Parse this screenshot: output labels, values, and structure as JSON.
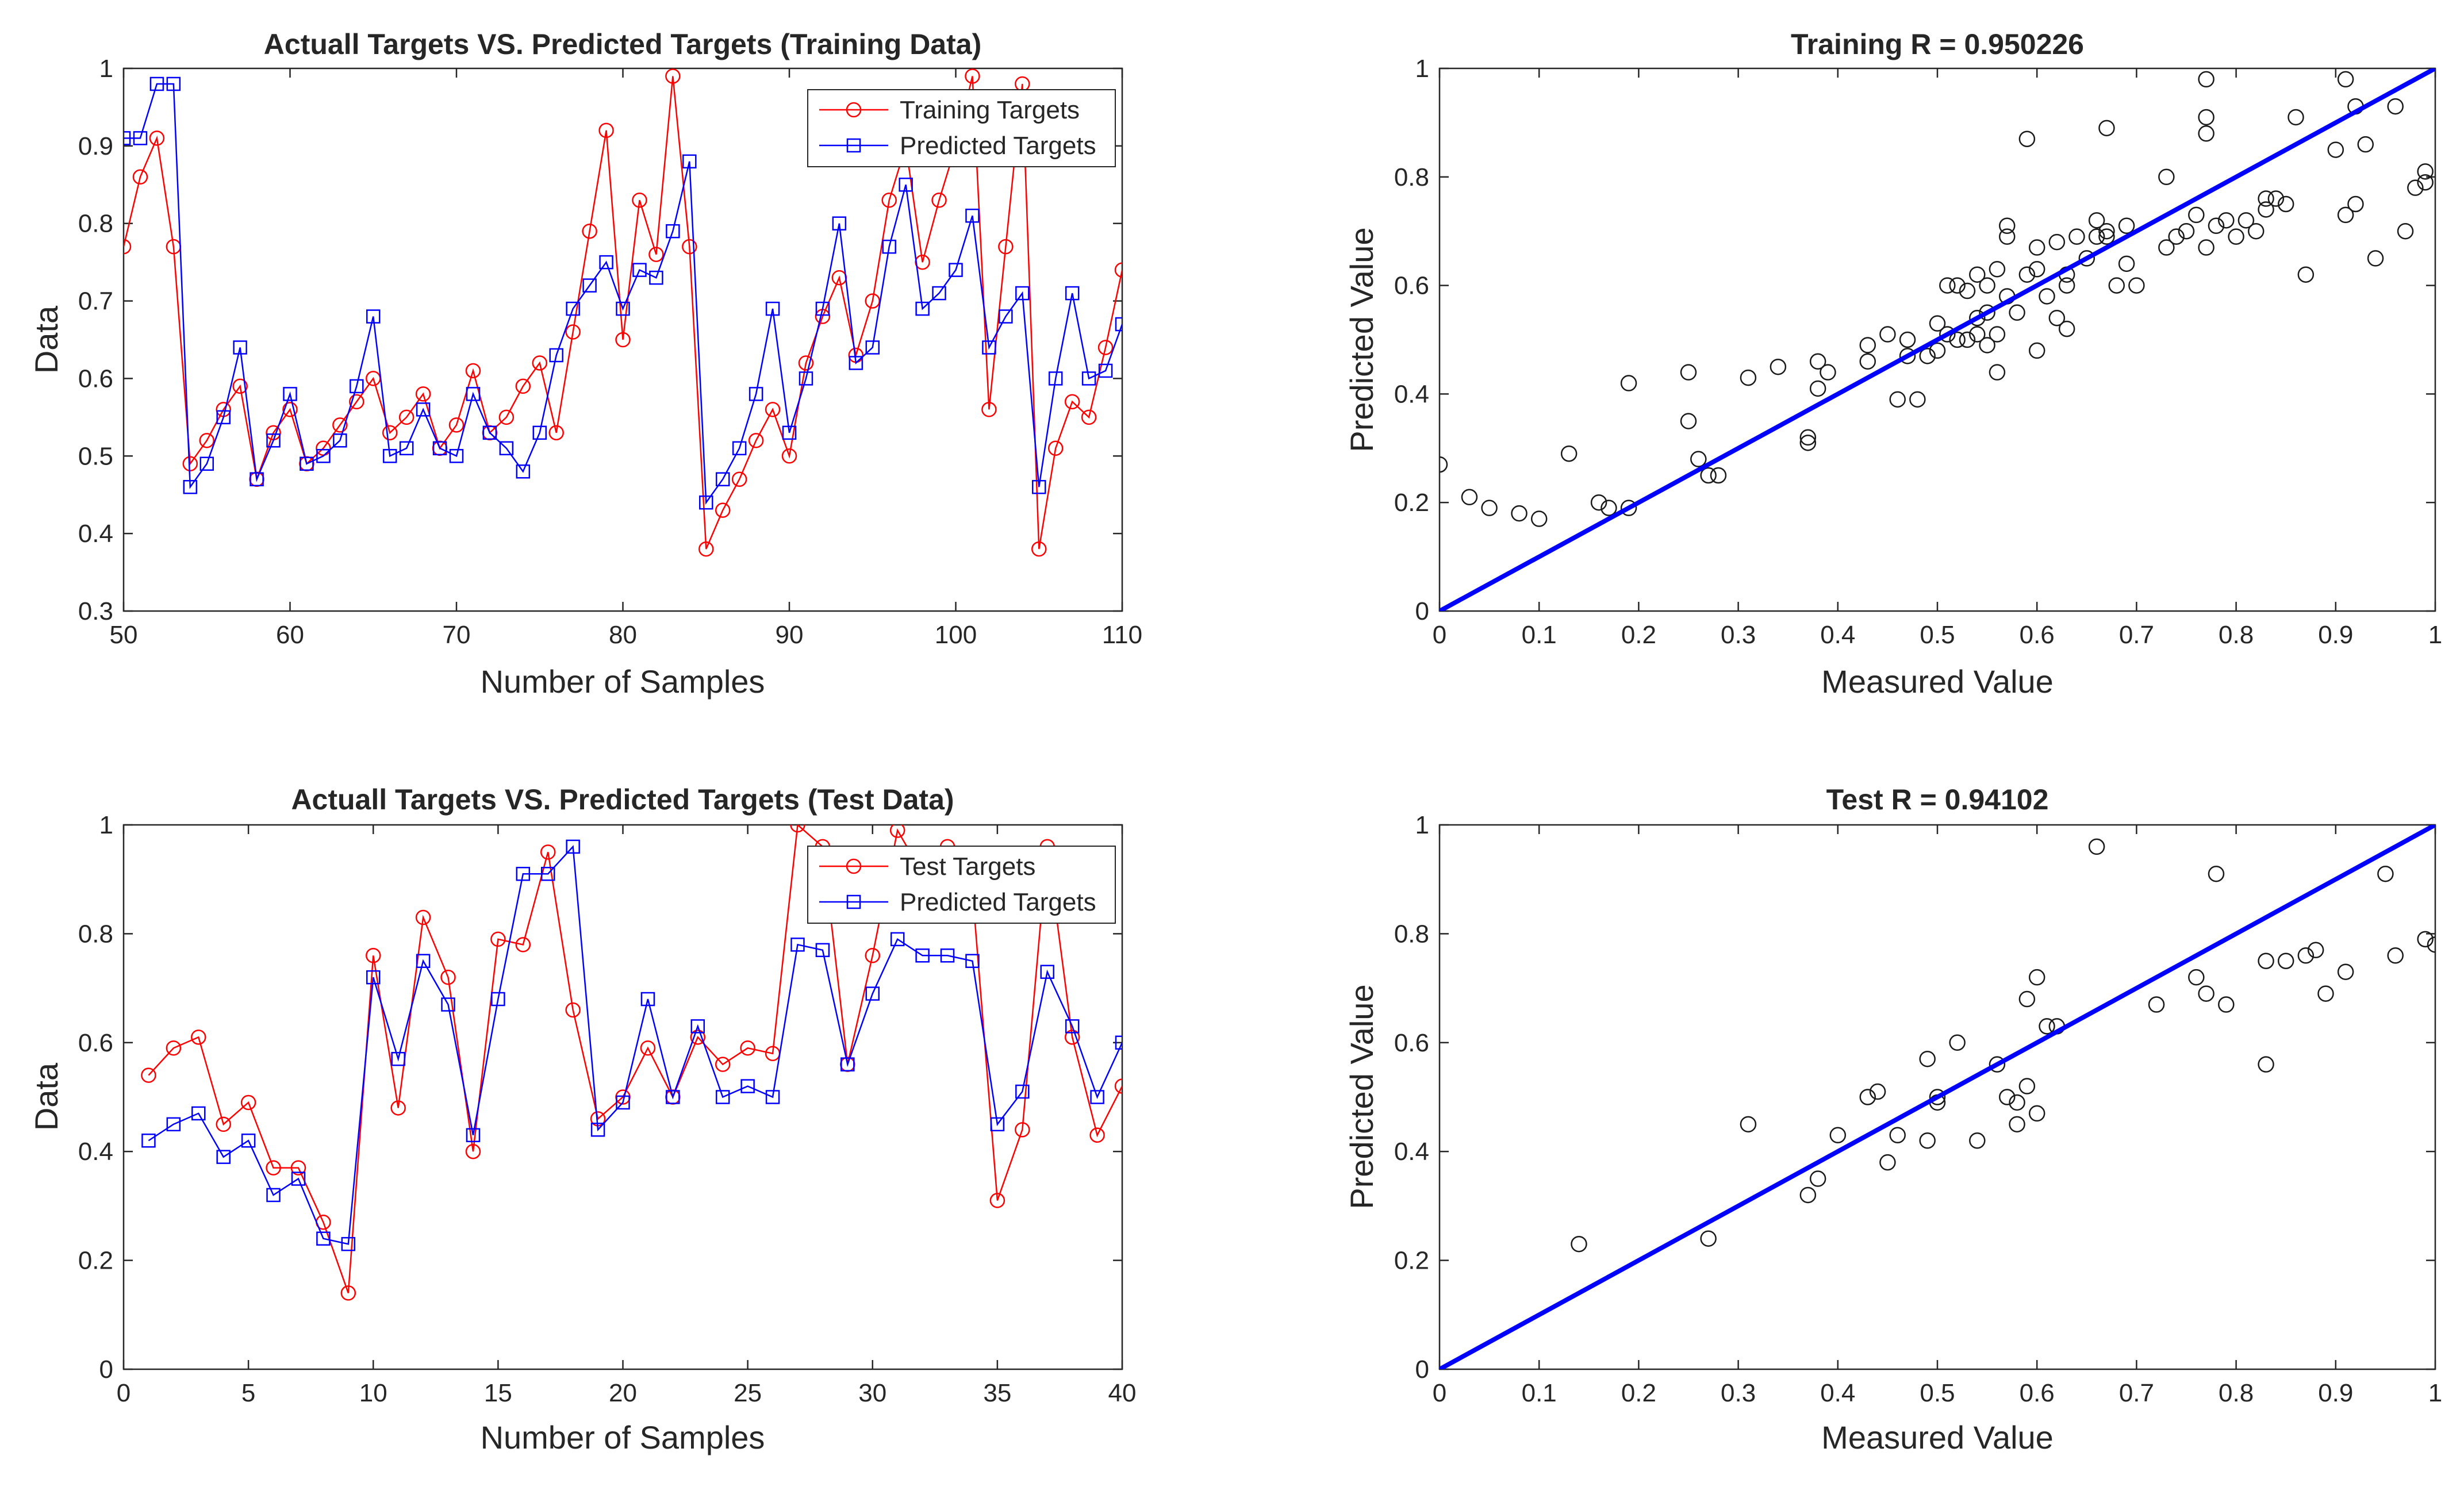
{
  "figure": {
    "background": "#ffffff"
  },
  "chart_data": [
    {
      "id": "train-ts",
      "type": "line",
      "title": "Actuall Targets VS. Predicted Targets (Training Data)",
      "xlabel": "Number of Samples",
      "ylabel": "Data",
      "xlim": [
        50,
        110
      ],
      "ylim": [
        0.3,
        1
      ],
      "xticks": [
        50,
        60,
        70,
        80,
        90,
        100,
        110
      ],
      "yticks": [
        0.3,
        0.4,
        0.5,
        0.6,
        0.7,
        0.8,
        0.9,
        1
      ],
      "ytick_labels": [
        "0.3",
        "0.4",
        "0.5",
        "0.6",
        "0.7",
        "0.8",
        "0.9",
        "1"
      ],
      "legend_position": "top-right",
      "x": [
        50,
        51,
        52,
        53,
        54,
        55,
        56,
        57,
        58,
        59,
        60,
        61,
        62,
        63,
        64,
        65,
        66,
        67,
        68,
        69,
        70,
        71,
        72,
        73,
        74,
        75,
        76,
        77,
        78,
        79,
        80,
        81,
        82,
        83,
        84,
        85,
        86,
        87,
        88,
        89,
        90,
        91,
        92,
        93,
        94,
        95,
        96,
        97,
        98,
        99,
        100,
        101,
        102,
        103,
        104,
        105,
        106,
        107,
        108,
        109,
        110
      ],
      "series": [
        {
          "name": "Training Targets",
          "color": "#ff0000",
          "marker": "circle",
          "values": [
            0.77,
            0.86,
            0.91,
            0.77,
            0.49,
            0.52,
            0.56,
            0.59,
            0.47,
            0.53,
            0.56,
            0.49,
            0.51,
            0.54,
            0.57,
            0.6,
            0.53,
            0.55,
            0.58,
            0.51,
            0.54,
            0.61,
            0.53,
            0.55,
            0.59,
            0.62,
            0.53,
            0.66,
            0.79,
            0.92,
            0.65,
            0.83,
            0.76,
            0.99,
            0.77,
            0.38,
            0.43,
            0.47,
            0.52,
            0.56,
            0.5,
            0.62,
            0.68,
            0.73,
            0.63,
            0.7,
            0.83,
            0.9,
            0.75,
            0.83,
            0.9,
            0.99,
            0.56,
            0.77,
            0.98,
            0.38,
            0.51,
            0.57,
            0.55,
            0.64,
            0.74
          ]
        },
        {
          "name": "Predicted Targets",
          "color": "#0000ff",
          "marker": "square",
          "values": [
            0.91,
            0.91,
            0.98,
            0.98,
            0.46,
            0.49,
            0.55,
            0.64,
            0.47,
            0.52,
            0.58,
            0.49,
            0.5,
            0.52,
            0.59,
            0.68,
            0.5,
            0.51,
            0.56,
            0.51,
            0.5,
            0.58,
            0.53,
            0.51,
            0.48,
            0.53,
            0.63,
            0.69,
            0.72,
            0.75,
            0.69,
            0.74,
            0.73,
            0.79,
            0.88,
            0.44,
            0.47,
            0.51,
            0.58,
            0.69,
            0.53,
            0.6,
            0.69,
            0.8,
            0.62,
            0.64,
            0.77,
            0.85,
            0.69,
            0.71,
            0.74,
            0.81,
            0.64,
            0.68,
            0.71,
            0.46,
            0.6,
            0.71,
            0.6,
            0.61,
            0.67
          ]
        }
      ]
    },
    {
      "id": "train-reg",
      "type": "scatter",
      "title": "Training R = 0.950226",
      "xlabel": "Measured Value",
      "ylabel": "Predicted Value",
      "xlim": [
        0,
        1
      ],
      "ylim": [
        0,
        1
      ],
      "xticks": [
        0,
        0.1,
        0.2,
        0.3,
        0.4,
        0.5,
        0.6,
        0.7,
        0.8,
        0.9,
        1
      ],
      "xtick_labels": [
        "0",
        "0.1",
        "0.2",
        "0.3",
        "0.4",
        "0.5",
        "0.6",
        "0.7",
        "0.8",
        "0.9",
        "1"
      ],
      "yticks": [
        0,
        0.2,
        0.4,
        0.6,
        0.8,
        1
      ],
      "ytick_labels": [
        "0",
        "0.2",
        "0.4",
        "0.6",
        "0.8",
        "1"
      ],
      "fit_line": {
        "from": [
          0,
          0
        ],
        "to": [
          1,
          1
        ],
        "color": "#0000ff"
      },
      "points": [
        [
          0,
          0.27
        ],
        [
          0.03,
          0.21
        ],
        [
          0.05,
          0.19
        ],
        [
          0.08,
          0.18
        ],
        [
          0.1,
          0.17
        ],
        [
          0.13,
          0.29
        ],
        [
          0.16,
          0.2
        ],
        [
          0.17,
          0.19
        ],
        [
          0.19,
          0.19
        ],
        [
          0.19,
          0.42
        ],
        [
          0.25,
          0.44
        ],
        [
          0.25,
          0.35
        ],
        [
          0.26,
          0.28
        ],
        [
          0.27,
          0.25
        ],
        [
          0.28,
          0.25
        ],
        [
          0.31,
          0.43
        ],
        [
          0.34,
          0.45
        ],
        [
          0.37,
          0.32
        ],
        [
          0.37,
          0.31
        ],
        [
          0.38,
          0.46
        ],
        [
          0.38,
          0.41
        ],
        [
          0.39,
          0.44
        ],
        [
          0.43,
          0.46
        ],
        [
          0.43,
          0.49
        ],
        [
          0.45,
          0.51
        ],
        [
          0.46,
          0.39
        ],
        [
          0.47,
          0.47
        ],
        [
          0.47,
          0.5
        ],
        [
          0.48,
          0.39
        ],
        [
          0.49,
          0.47
        ],
        [
          0.5,
          0.48
        ],
        [
          0.5,
          0.53
        ],
        [
          0.51,
          0.6
        ],
        [
          0.51,
          0.51
        ],
        [
          0.52,
          0.5
        ],
        [
          0.52,
          0.6
        ],
        [
          0.53,
          0.5
        ],
        [
          0.53,
          0.59
        ],
        [
          0.54,
          0.51
        ],
        [
          0.54,
          0.54
        ],
        [
          0.54,
          0.62
        ],
        [
          0.55,
          0.6
        ],
        [
          0.55,
          0.55
        ],
        [
          0.55,
          0.49
        ],
        [
          0.56,
          0.51
        ],
        [
          0.56,
          0.63
        ],
        [
          0.56,
          0.44
        ],
        [
          0.57,
          0.58
        ],
        [
          0.57,
          0.69
        ],
        [
          0.57,
          0.71
        ],
        [
          0.58,
          0.55
        ],
        [
          0.59,
          0.87
        ],
        [
          0.59,
          0.62
        ],
        [
          0.6,
          0.63
        ],
        [
          0.6,
          0.48
        ],
        [
          0.6,
          0.67
        ],
        [
          0.61,
          0.58
        ],
        [
          0.62,
          0.68
        ],
        [
          0.62,
          0.54
        ],
        [
          0.63,
          0.62
        ],
        [
          0.63,
          0.6
        ],
        [
          0.63,
          0.52
        ],
        [
          0.64,
          0.69
        ],
        [
          0.65,
          0.65
        ],
        [
          0.66,
          0.69
        ],
        [
          0.66,
          0.72
        ],
        [
          0.67,
          0.69
        ],
        [
          0.67,
          0.7
        ],
        [
          0.67,
          0.89
        ],
        [
          0.68,
          0.6
        ],
        [
          0.69,
          0.71
        ],
        [
          0.69,
          0.64
        ],
        [
          0.7,
          0.6
        ],
        [
          0.73,
          0.8
        ],
        [
          0.73,
          0.67
        ],
        [
          0.74,
          0.69
        ],
        [
          0.75,
          0.7
        ],
        [
          0.76,
          0.73
        ],
        [
          0.77,
          0.67
        ],
        [
          0.77,
          0.91
        ],
        [
          0.77,
          0.98
        ],
        [
          0.77,
          0.88
        ],
        [
          0.78,
          0.71
        ],
        [
          0.79,
          0.72
        ],
        [
          0.8,
          0.69
        ],
        [
          0.81,
          0.72
        ],
        [
          0.82,
          0.7
        ],
        [
          0.83,
          0.74
        ],
        [
          0.83,
          0.76
        ],
        [
          0.84,
          0.76
        ],
        [
          0.85,
          0.75
        ],
        [
          0.86,
          0.91
        ],
        [
          0.87,
          0.62
        ],
        [
          0.9,
          0.85
        ],
        [
          0.91,
          0.98
        ],
        [
          0.91,
          0.73
        ],
        [
          0.92,
          0.75
        ],
        [
          0.92,
          0.93
        ],
        [
          0.93,
          0.86
        ],
        [
          0.94,
          0.65
        ],
        [
          0.96,
          0.93
        ],
        [
          0.97,
          0.7
        ],
        [
          0.98,
          0.78
        ],
        [
          0.99,
          0.79
        ],
        [
          0.99,
          0.81
        ]
      ]
    },
    {
      "id": "test-ts",
      "type": "line",
      "title": "Actuall Targets VS. Predicted Targets (Test Data)",
      "xlabel": "Number of Samples",
      "ylabel": "Data",
      "xlim": [
        0,
        40
      ],
      "ylim": [
        0,
        1
      ],
      "xticks": [
        0,
        5,
        10,
        15,
        20,
        25,
        30,
        35,
        40
      ],
      "yticks": [
        0,
        0.2,
        0.4,
        0.6,
        0.8,
        1
      ],
      "ytick_labels": [
        "0",
        "0.2",
        "0.4",
        "0.6",
        "0.8",
        "1"
      ],
      "legend_position": "top-right",
      "x": [
        1,
        2,
        3,
        4,
        5,
        6,
        7,
        8,
        9,
        10,
        11,
        12,
        13,
        14,
        15,
        16,
        17,
        18,
        19,
        20,
        21,
        22,
        23,
        24,
        25,
        26,
        27,
        28,
        29,
        30,
        31,
        32,
        33,
        34,
        35,
        36,
        37,
        38,
        39,
        40
      ],
      "series": [
        {
          "name": "Test Targets",
          "color": "#ff0000",
          "marker": "circle",
          "values": [
            0.54,
            0.59,
            0.61,
            0.45,
            0.49,
            0.37,
            0.37,
            0.27,
            0.14,
            0.76,
            0.48,
            0.83,
            0.72,
            0.4,
            0.79,
            0.78,
            0.95,
            0.66,
            0.46,
            0.5,
            0.59,
            0.5,
            0.61,
            0.56,
            0.59,
            0.58,
            1.0,
            0.96,
            0.56,
            0.76,
            0.99,
            0.91,
            0.96,
            0.88,
            0.31,
            0.44,
            0.96,
            0.61,
            0.43,
            0.52
          ]
        },
        {
          "name": "Predicted Targets",
          "color": "#0000ff",
          "marker": "square",
          "values": [
            0.42,
            0.45,
            0.47,
            0.39,
            0.42,
            0.32,
            0.35,
            0.24,
            0.23,
            0.72,
            0.57,
            0.75,
            0.67,
            0.43,
            0.68,
            0.91,
            0.91,
            0.96,
            0.44,
            0.49,
            0.68,
            0.5,
            0.63,
            0.5,
            0.52,
            0.5,
            0.78,
            0.77,
            0.56,
            0.69,
            0.79,
            0.76,
            0.76,
            0.75,
            0.45,
            0.51,
            0.73,
            0.63,
            0.5,
            0.6
          ]
        }
      ]
    },
    {
      "id": "test-reg",
      "type": "scatter",
      "title": "Test R = 0.94102",
      "xlabel": "Measured Value",
      "ylabel": "Predicted Value",
      "xlim": [
        0,
        1
      ],
      "ylim": [
        0,
        1
      ],
      "xticks": [
        0,
        0.1,
        0.2,
        0.3,
        0.4,
        0.5,
        0.6,
        0.7,
        0.8,
        0.9,
        1
      ],
      "xtick_labels": [
        "0",
        "0.1",
        "0.2",
        "0.3",
        "0.4",
        "0.5",
        "0.6",
        "0.7",
        "0.8",
        "0.9",
        "1"
      ],
      "yticks": [
        0,
        0.2,
        0.4,
        0.6,
        0.8,
        1
      ],
      "ytick_labels": [
        "0",
        "0.2",
        "0.4",
        "0.6",
        "0.8",
        "1"
      ],
      "fit_line": {
        "from": [
          0,
          0
        ],
        "to": [
          1,
          1
        ],
        "color": "#0000ff"
      },
      "points": [
        [
          0.14,
          0.23
        ],
        [
          0.27,
          0.24
        ],
        [
          0.31,
          0.45
        ],
        [
          0.37,
          0.32
        ],
        [
          0.38,
          0.35
        ],
        [
          0.4,
          0.43
        ],
        [
          0.43,
          0.5
        ],
        [
          0.44,
          0.51
        ],
        [
          0.45,
          0.38
        ],
        [
          0.46,
          0.43
        ],
        [
          0.49,
          0.57
        ],
        [
          0.49,
          0.42
        ],
        [
          0.5,
          0.49
        ],
        [
          0.5,
          0.5
        ],
        [
          0.52,
          0.6
        ],
        [
          0.54,
          0.42
        ],
        [
          0.56,
          0.56
        ],
        [
          0.57,
          0.5
        ],
        [
          0.58,
          0.49
        ],
        [
          0.58,
          0.45
        ],
        [
          0.59,
          0.52
        ],
        [
          0.59,
          0.68
        ],
        [
          0.6,
          0.47
        ],
        [
          0.6,
          0.72
        ],
        [
          0.61,
          0.63
        ],
        [
          0.62,
          0.63
        ],
        [
          0.66,
          0.96
        ],
        [
          0.72,
          0.67
        ],
        [
          0.76,
          0.72
        ],
        [
          0.77,
          0.69
        ],
        [
          0.78,
          0.91
        ],
        [
          0.79,
          0.67
        ],
        [
          0.83,
          0.75
        ],
        [
          0.83,
          0.56
        ],
        [
          0.85,
          0.75
        ],
        [
          0.87,
          0.76
        ],
        [
          0.88,
          0.77
        ],
        [
          0.89,
          0.69
        ],
        [
          0.91,
          0.73
        ],
        [
          0.95,
          0.91
        ],
        [
          0.96,
          0.76
        ],
        [
          0.99,
          0.79
        ],
        [
          1.0,
          0.78
        ]
      ]
    }
  ]
}
